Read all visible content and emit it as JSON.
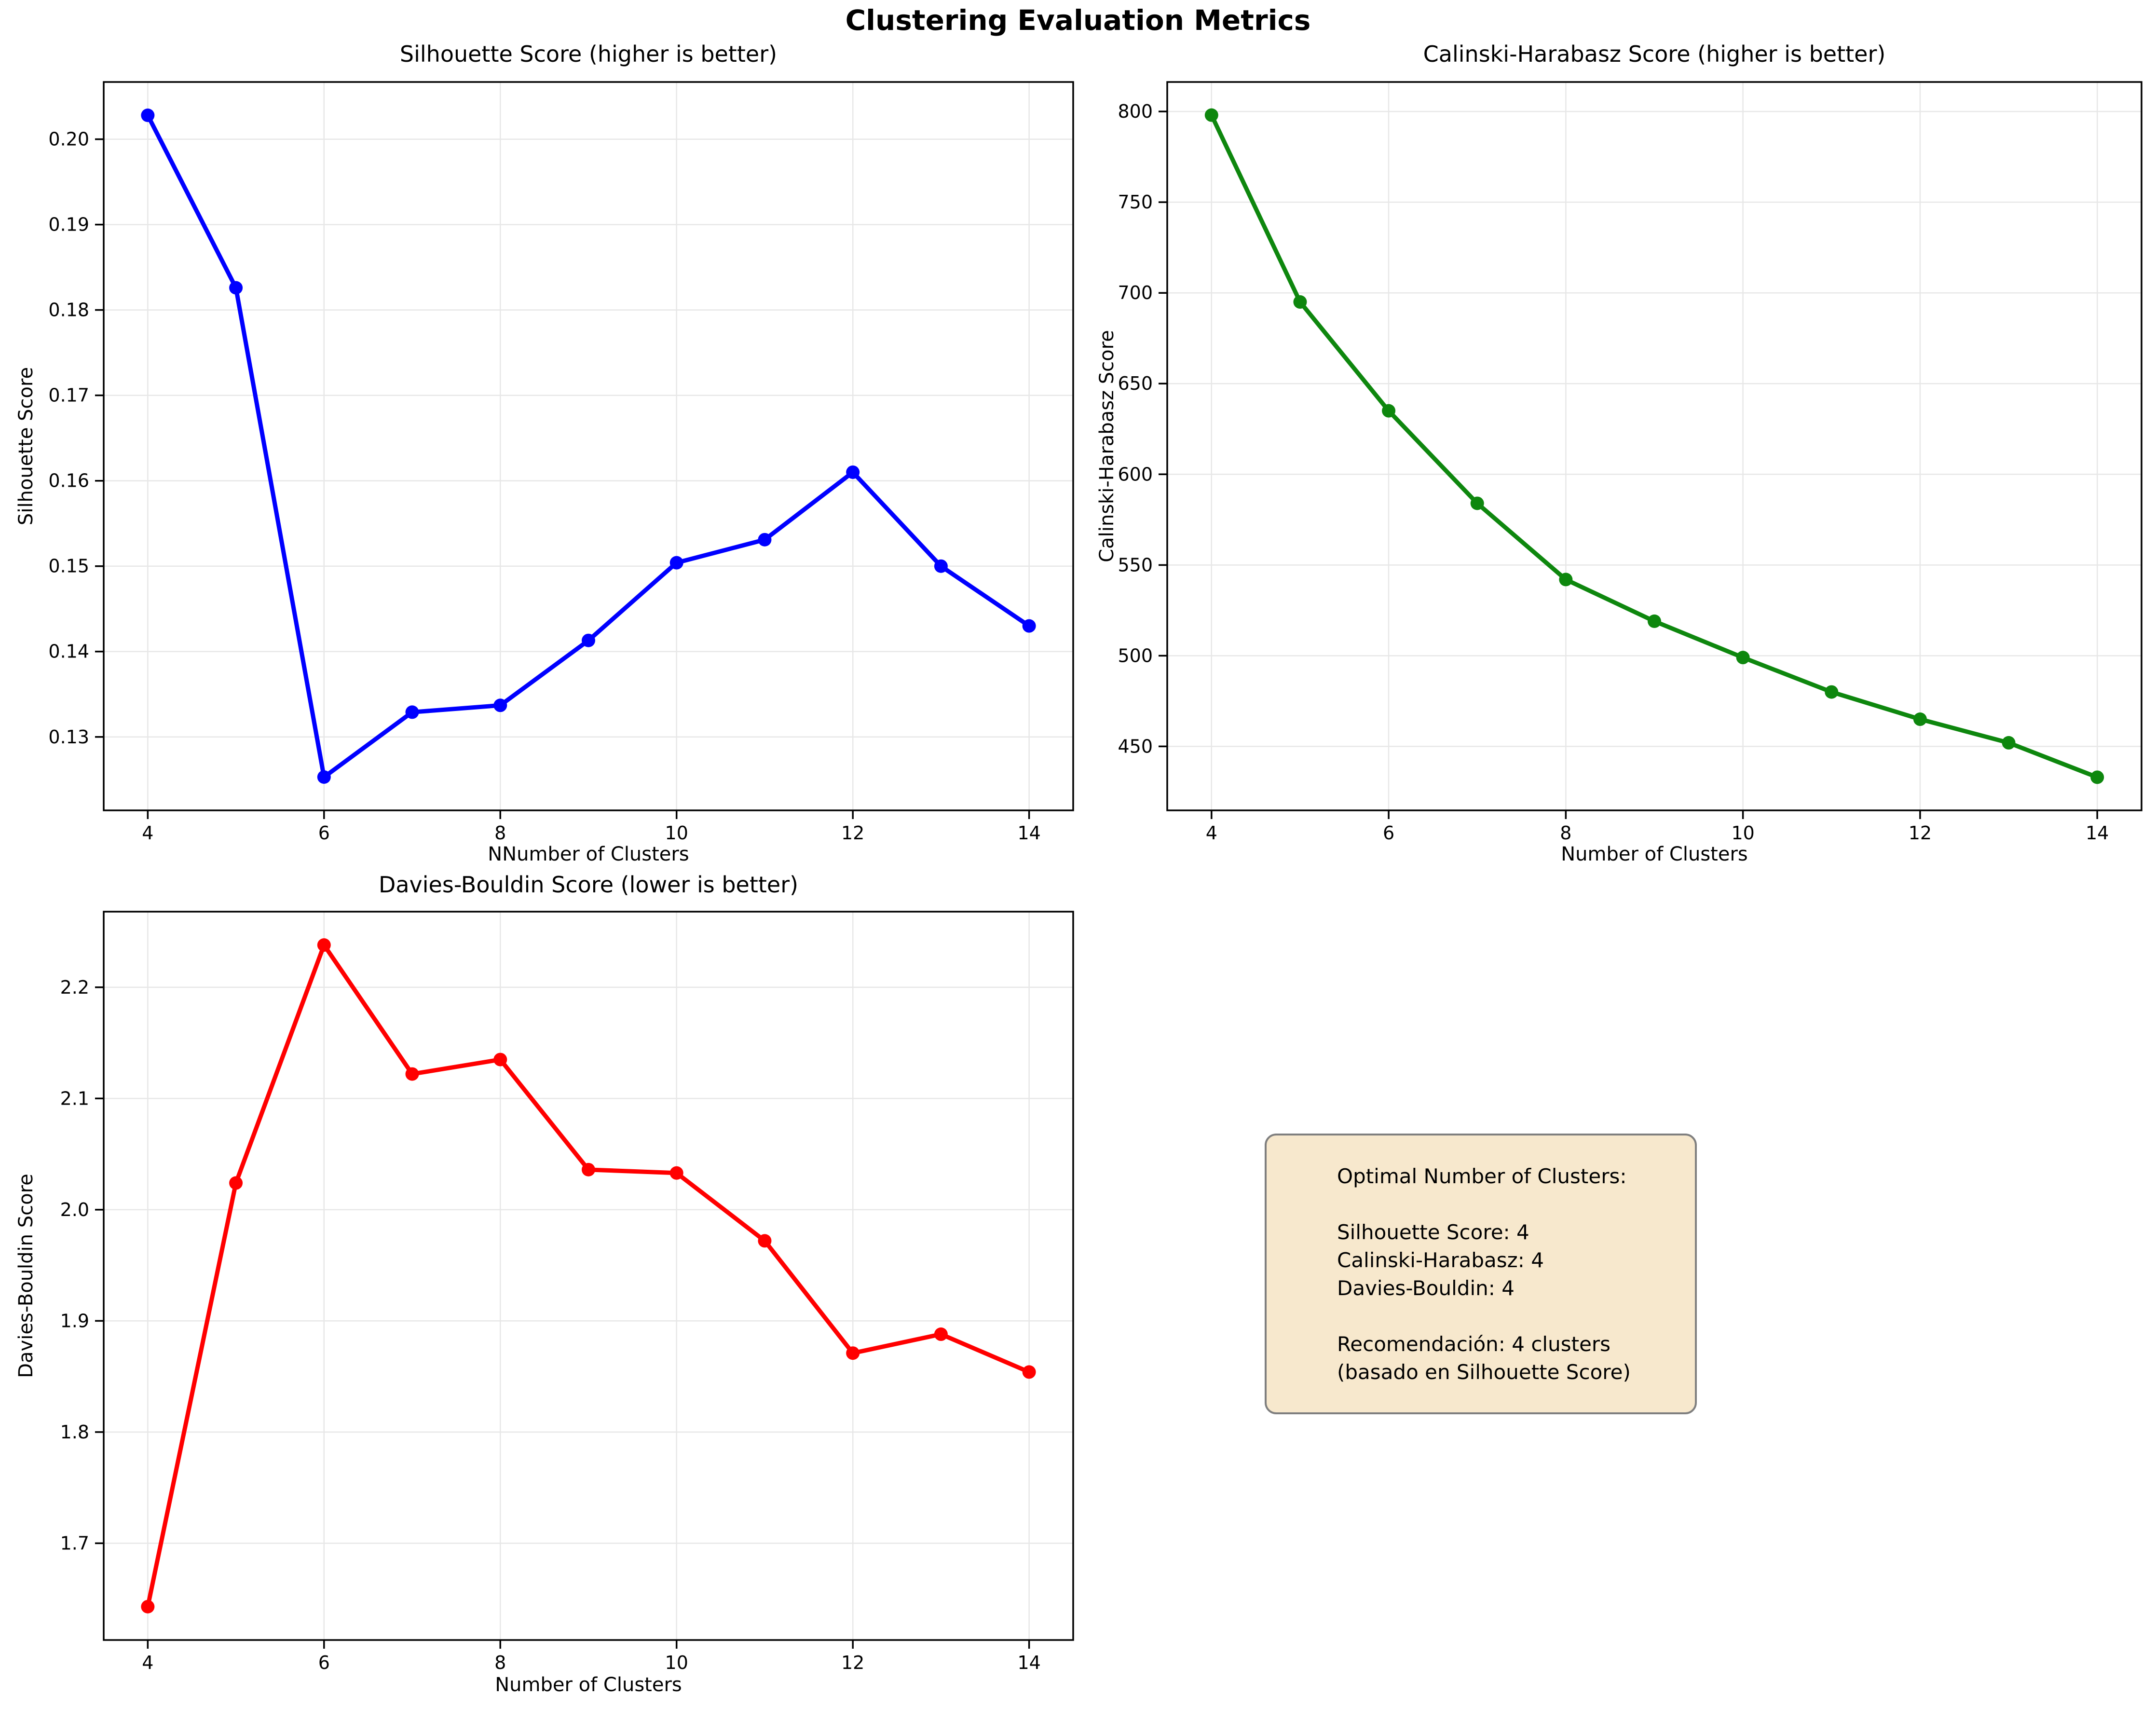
{
  "figure": {
    "title": "Clustering Evaluation Metrics",
    "background": "#ffffff"
  },
  "chart_data": [
    {
      "id": "silhouette",
      "type": "line",
      "title": "Silhouette Score (higher is better)",
      "xlabel": "NNumber of Clusters",
      "ylabel": "Silhouette Score",
      "line_color": "#0000ff",
      "marker": "circle",
      "grid": true,
      "legend_position": "none",
      "x": [
        4,
        5,
        6,
        7,
        8,
        9,
        10,
        11,
        12,
        13,
        14
      ],
      "y": [
        0.2028,
        0.1826,
        0.1253,
        0.1329,
        0.1337,
        0.1413,
        0.1504,
        0.1531,
        0.161,
        0.15,
        0.143
      ],
      "xlim": [
        3.5,
        14.5
      ],
      "ylim": [
        0.1214,
        0.2067
      ],
      "xticks": {
        "values": [
          4,
          6,
          8,
          10,
          12,
          14
        ],
        "labels": [
          "4",
          "6",
          "8",
          "10",
          "12",
          "14"
        ]
      },
      "yticks": {
        "values": [
          0.13,
          0.14,
          0.15,
          0.16,
          0.17,
          0.18,
          0.19,
          0.2
        ],
        "labels": [
          "0.13",
          "0.14",
          "0.15",
          "0.16",
          "0.17",
          "0.18",
          "0.19",
          "0.20"
        ]
      }
    },
    {
      "id": "calinski",
      "type": "line",
      "title": "Calinski-Harabasz Score (higher is better)",
      "xlabel": "Number of Clusters",
      "ylabel": "Calinski-Harabasz Score",
      "line_color": "#0e870e",
      "marker": "circle",
      "grid": true,
      "legend_position": "none",
      "x": [
        4,
        5,
        6,
        7,
        8,
        9,
        10,
        11,
        12,
        13,
        14
      ],
      "y": [
        798,
        695,
        635,
        584,
        542,
        519,
        499,
        480,
        465,
        452,
        433
      ],
      "xlim": [
        3.5,
        14.5
      ],
      "ylim": [
        414.75,
        816.25
      ],
      "xticks": {
        "values": [
          4,
          6,
          8,
          10,
          12,
          14
        ],
        "labels": [
          "4",
          "6",
          "8",
          "10",
          "12",
          "14"
        ]
      },
      "yticks": {
        "values": [
          450,
          500,
          550,
          600,
          650,
          700,
          750,
          800
        ],
        "labels": [
          "450",
          "500",
          "550",
          "600",
          "650",
          "700",
          "750",
          "800"
        ]
      }
    },
    {
      "id": "davies",
      "type": "line",
      "title": "Davies-Bouldin Score (lower is better)",
      "xlabel": "Number of Clusters",
      "ylabel": "Davies-Bouldin Score",
      "line_color": "#ff0000",
      "marker": "circle",
      "grid": true,
      "legend_position": "none",
      "x": [
        4,
        5,
        6,
        7,
        8,
        9,
        10,
        11,
        12,
        13,
        14
      ],
      "y": [
        1.643,
        2.024,
        2.238,
        2.122,
        2.135,
        2.036,
        2.033,
        1.972,
        1.871,
        1.888,
        1.854
      ],
      "xlim": [
        3.5,
        14.5
      ],
      "ylim": [
        1.613,
        2.268
      ],
      "xticks": {
        "values": [
          4,
          6,
          8,
          10,
          12,
          14
        ],
        "labels": [
          "4",
          "6",
          "8",
          "10",
          "12",
          "14"
        ]
      },
      "yticks": {
        "values": [
          1.7,
          1.8,
          1.9,
          2.0,
          2.1,
          2.2
        ],
        "labels": [
          "1.7",
          "1.8",
          "1.9",
          "2.0",
          "2.1",
          "2.2"
        ]
      }
    }
  ],
  "info_box": {
    "background": "#f7e8cd",
    "border_color": "#7f7f7f",
    "lines": [
      "Optimal Number of Clusters:",
      "",
      "Silhouette Score: 4",
      "Calinski-Harabasz: 4",
      "Davies-Bouldin: 4",
      "",
      "Recomendación: 4 clusters",
      "(basado en Silhouette Score)"
    ]
  }
}
